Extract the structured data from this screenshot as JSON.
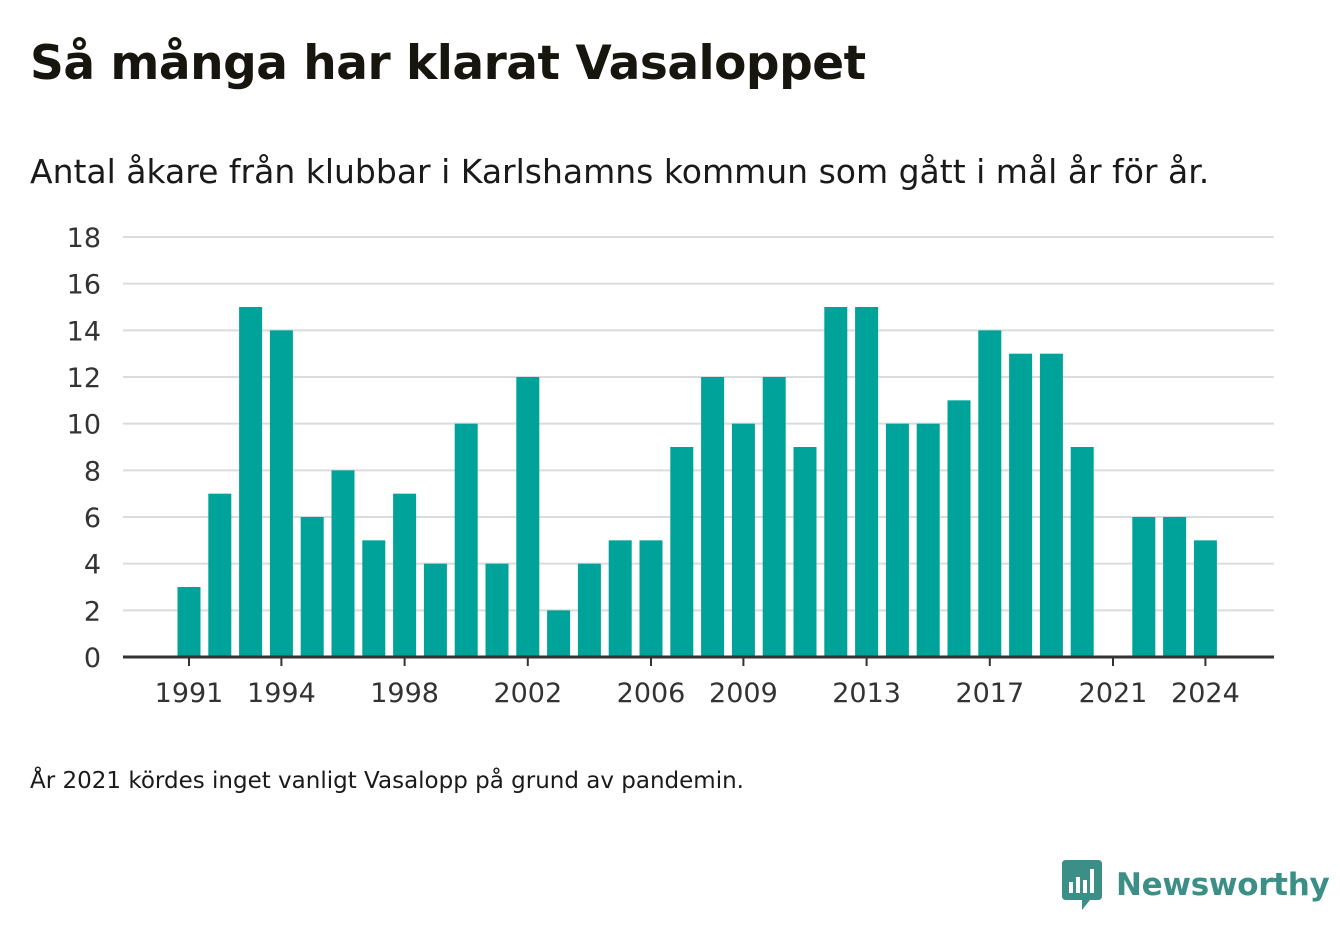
{
  "title": "Så många har klarat Vasaloppet",
  "subtitle": "Antal åkare från klubbar i Karlshamns kommun som gått i mål år för år.",
  "note": "År 2021 kördes inget vanligt Vasalopp på grund av pandemin.",
  "brand": {
    "name": "Newsworthy",
    "icon": "newsworthy-logo-icon",
    "color": "#3b8f86"
  },
  "chart_data": {
    "type": "bar",
    "title": "Så många har klarat Vasaloppet",
    "subtitle": "Antal åkare från klubbar i Karlshamns kommun som gått i mål år för år.",
    "xlabel": "",
    "ylabel": "",
    "ylim": [
      0,
      18
    ],
    "yticks": [
      0,
      2,
      4,
      6,
      8,
      10,
      12,
      14,
      16,
      18
    ],
    "xticks": [
      1991,
      1994,
      1998,
      2002,
      2006,
      2009,
      2013,
      2017,
      2021,
      2024
    ],
    "grid": true,
    "bar_color": "#00a39a",
    "categories": [
      1991,
      1992,
      1993,
      1994,
      1995,
      1996,
      1997,
      1998,
      1999,
      2000,
      2001,
      2002,
      2003,
      2004,
      2005,
      2006,
      2007,
      2008,
      2009,
      2010,
      2011,
      2012,
      2013,
      2014,
      2015,
      2016,
      2017,
      2018,
      2019,
      2020,
      2021,
      2022,
      2023,
      2024
    ],
    "values": [
      3,
      7,
      15,
      14,
      6,
      8,
      5,
      7,
      4,
      10,
      4,
      12,
      2,
      4,
      5,
      5,
      9,
      12,
      10,
      12,
      9,
      15,
      15,
      10,
      10,
      11,
      14,
      13,
      13,
      9,
      0,
      6,
      6,
      5
    ]
  }
}
